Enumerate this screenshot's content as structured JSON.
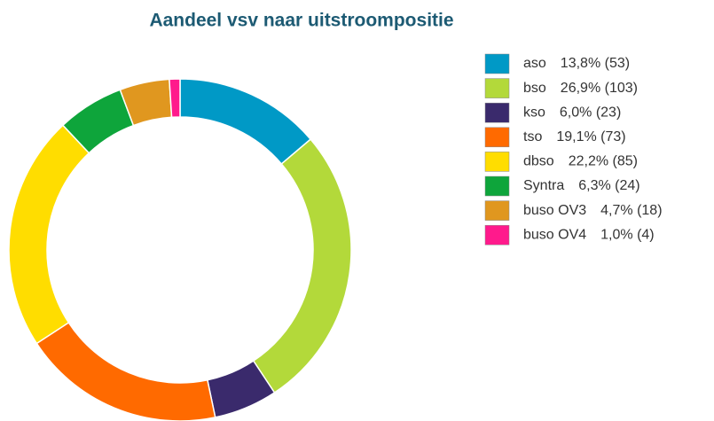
{
  "chart_data": {
    "type": "donut",
    "title": "Aandeel vsv naar uitstroompositie",
    "categories": [
      "aso",
      "bso",
      "kso",
      "tso",
      "dbso",
      "Syntra",
      "buso OV3",
      "buso OV4"
    ],
    "values": [
      13.8,
      26.9,
      6.0,
      19.1,
      22.2,
      6.3,
      4.7,
      1.0
    ],
    "value_labels": [
      "13,8% (53)",
      "26,9% (103)",
      "6,0% (23)",
      "19,1% (73)",
      "22,2% (85)",
      "6,3% (24)",
      "4,7% (18)",
      "1,0% (4)"
    ],
    "colors": [
      "#0099c6",
      "#b3d93a",
      "#3a2a6c",
      "#ff6a00",
      "#ffdd00",
      "#0ea53b",
      "#e0971f",
      "#ff1a8c"
    ],
    "legend": "right"
  }
}
